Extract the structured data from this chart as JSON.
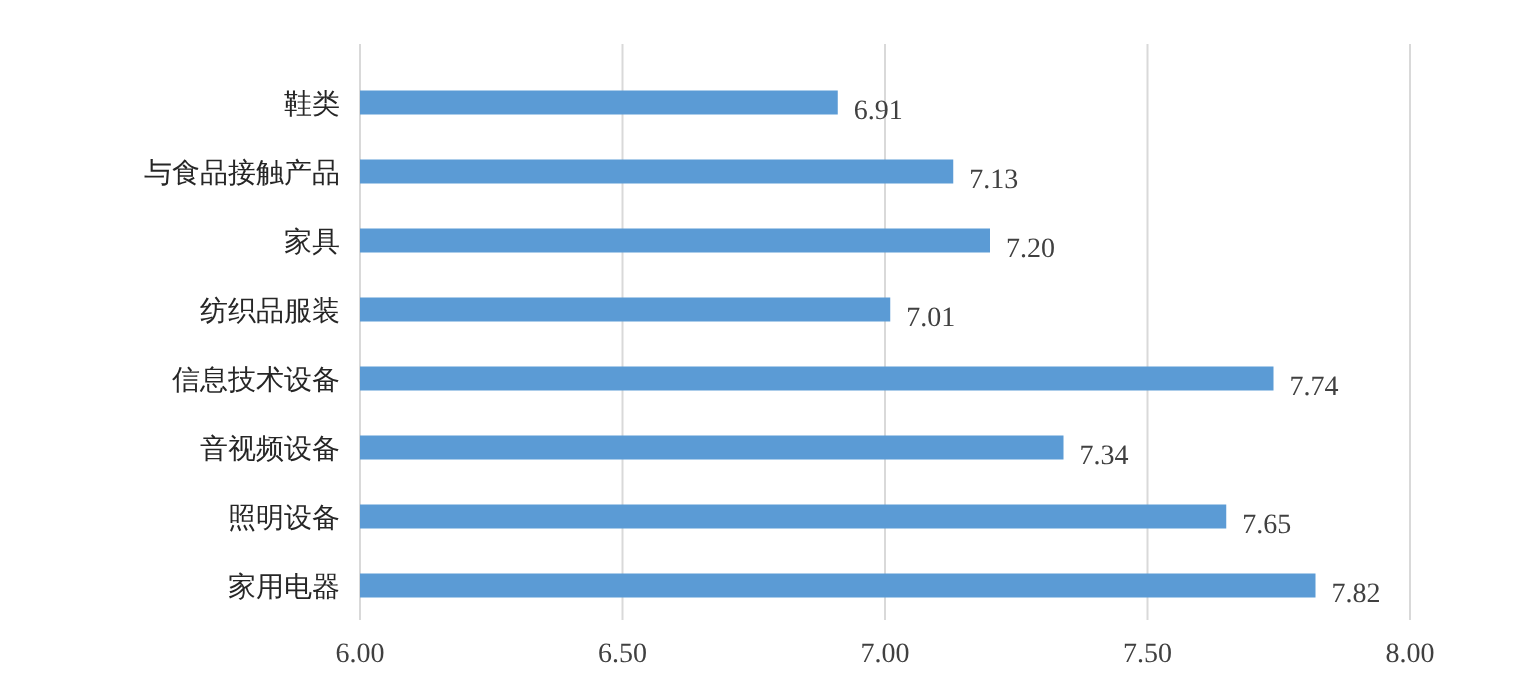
{
  "chart_data": {
    "type": "bar",
    "orientation": "horizontal",
    "categories": [
      "鞋类",
      "与食品接触产品",
      "家具",
      "纺织品服装",
      "信息技术设备",
      "音视频设备",
      "照明设备",
      "家用电器"
    ],
    "values": [
      6.91,
      7.13,
      7.2,
      7.01,
      7.74,
      7.34,
      7.65,
      7.82
    ],
    "value_labels": [
      "6.91",
      "7.13",
      "7.20",
      "7.01",
      "7.74",
      "7.34",
      "7.65",
      "7.82"
    ],
    "color": "#5b9bd5",
    "xlim": [
      6,
      8
    ],
    "xticks": [
      {
        "value": 6,
        "label": "6.00"
      },
      {
        "value": 6.5,
        "label": "6.50"
      },
      {
        "value": 7,
        "label": "7.00"
      },
      {
        "value": 7.5,
        "label": "7.50"
      },
      {
        "value": 8,
        "label": "8.00"
      }
    ],
    "grid": "x"
  }
}
